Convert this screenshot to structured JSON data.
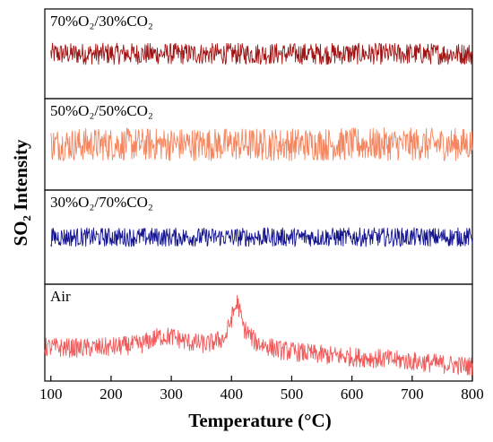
{
  "chart_data": {
    "type": "line",
    "xlabel": "Temperature (°C)",
    "ylabel": "SO₂ Intensity",
    "xlim": [
      90,
      800
    ],
    "x_ticks": [
      "100",
      "200",
      "300",
      "400",
      "500",
      "600",
      "700",
      "800"
    ],
    "grid": false,
    "legend": "none",
    "panels": [
      {
        "label": "70%O₂/30%CO₂",
        "color": "#a01414",
        "x": [
          100,
          200,
          300,
          400,
          500,
          600,
          700,
          800
        ],
        "y": [
          0.5,
          0.5,
          0.5,
          0.5,
          0.5,
          0.5,
          0.5,
          0.5
        ],
        "noise": 0.12
      },
      {
        "label": "50%O₂/50%CO₂",
        "color": "#f4855e",
        "x": [
          100,
          200,
          300,
          400,
          500,
          600,
          700,
          800
        ],
        "y": [
          0.5,
          0.5,
          0.5,
          0.5,
          0.5,
          0.5,
          0.5,
          0.5
        ],
        "noise": 0.18
      },
      {
        "label": "30%O₂/70%CO₂",
        "color": "#141490",
        "x": [
          100,
          200,
          300,
          400,
          500,
          600,
          700,
          800
        ],
        "y": [
          0.5,
          0.5,
          0.5,
          0.5,
          0.5,
          0.5,
          0.5,
          0.5
        ],
        "noise": 0.1
      },
      {
        "label": "Air",
        "color": "#f05a5a",
        "x": [
          90,
          150,
          200,
          250,
          280,
          300,
          330,
          360,
          390,
          400,
          410,
          420,
          440,
          480,
          550,
          650,
          800
        ],
        "y": [
          0.35,
          0.34,
          0.35,
          0.38,
          0.46,
          0.46,
          0.4,
          0.38,
          0.45,
          0.65,
          0.82,
          0.55,
          0.4,
          0.32,
          0.27,
          0.23,
          0.15
        ],
        "noise": 0.1
      }
    ]
  }
}
